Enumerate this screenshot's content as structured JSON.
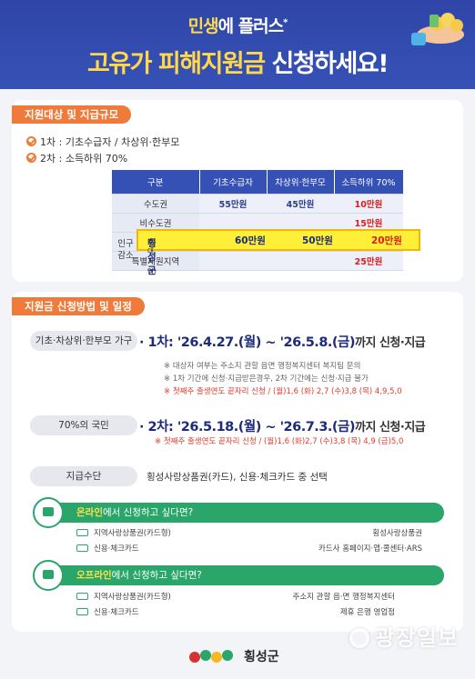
{
  "hero": {
    "line1_highlight": "민생",
    "line1_rest": "에 플러스",
    "line1_star": "*",
    "line2_highlight": "고유가 피해지원금",
    "line2_rest": " 신청하세요!"
  },
  "eligibility": {
    "section_title": "지원대상 및 지급규모",
    "round1": "1차 : 기초수급자  /  차상위·한부모",
    "round2": "2차 : 소득하위 70%",
    "table": {
      "headers": [
        "구분",
        "기초수급자",
        "차상위·한부모",
        "소득하위 70%"
      ],
      "rows": [
        {
          "region": "수도권",
          "values": [
            "55만원",
            "45만원",
            "10만원"
          ]
        },
        {
          "region": "비수도권",
          "values": [
            "",
            "",
            "15만원"
          ]
        },
        {
          "region": "횡성군",
          "region_sub": "(우대지역)",
          "values": [
            "60만원",
            "50만원",
            "20만원"
          ]
        },
        {
          "region": "특별지원지역",
          "values": [
            "",
            "",
            "25만원"
          ]
        }
      ],
      "pop_label": "인구감소"
    }
  },
  "application": {
    "section_title": "지원금 신청방법 및 일정",
    "round1_pill": "기초·차상위·한부모 가구",
    "round1_prefix": "· 1차: ",
    "round1_dates": "'26.4.27.(월) ~ '26.5.8.(금)",
    "round1_tail": "까지 신청·지급",
    "round1_notes": [
      "※ 대상자 여부는 주소지 관할 읍면 행정복지센터 복지팀 문의",
      "※ 1차 기간에 신청·지급받은경우, 2차 기간에는 신청·지급 불가"
    ],
    "round1_rule": "※ 첫째주 출생연도 끝자리 신청 / (월)1,6 (화) 2,7 (수)3,8 (목) 4,9,5,0",
    "round2_pill": "70%의 국민",
    "round2_prefix": "· 2차: ",
    "round2_dates": "'26.5.18.(월) ~ '26.7.3.(금)",
    "round2_tail": "까지 신청·지급",
    "round2_rule": "※ 첫째주 출생연도 끝자리 신청 / (월)1,6 (화)2,7 (수)3,8 (목) 4,9 (금)5,0",
    "means_pill": "지급수단",
    "means_text": "횡성사랑상품권(카드), 신용·체크카드 중 선택"
  },
  "online": {
    "highlight": "온라인",
    "rest": "에서 신청하고 싶다면?",
    "rows": [
      {
        "left": "지역사랑상품권(카드형)",
        "right": "횡성사랑상품권"
      },
      {
        "left": "신용·체크카드",
        "right": "카드사 홈페이지·앱·콜센터·ARS"
      }
    ]
  },
  "offline": {
    "highlight": "오프라인",
    "rest": "에서 신청하고 싶다면?",
    "rows": [
      {
        "left": "지역사랑상품권(카드형)",
        "right": "주소지 관할 읍·면 행정복지센터"
      },
      {
        "left": "신용·체크카드",
        "right": "제휴 은행 영업점"
      }
    ]
  },
  "footer": {
    "org": "횡성군"
  },
  "watermark": "광장일보",
  "colors": {
    "primary": "#3651b6",
    "accent": "#f07a3a",
    "green": "#2aa66b",
    "highlight": "#ffef39"
  }
}
